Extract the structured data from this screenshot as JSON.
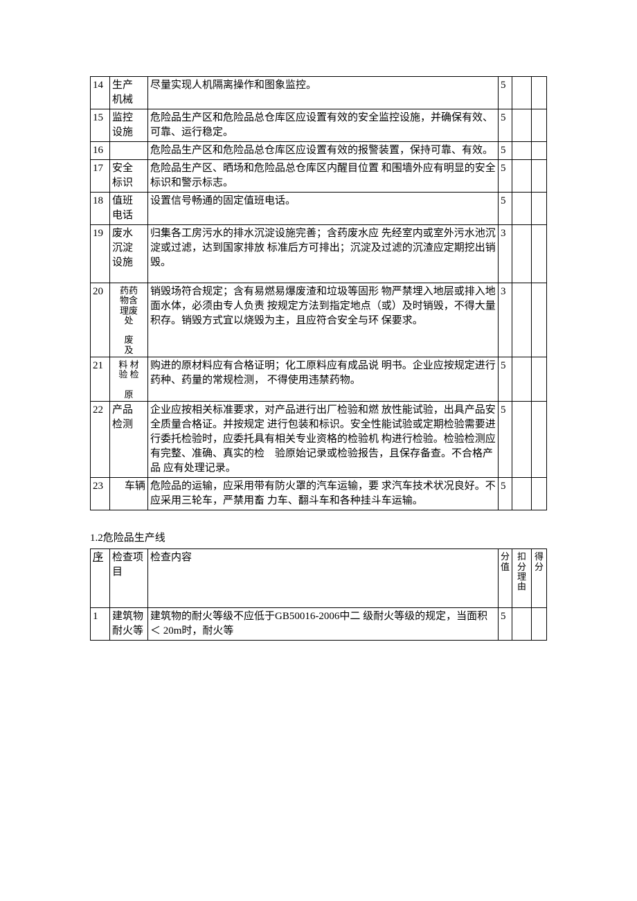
{
  "table1": {
    "columns": {
      "num_width": 28,
      "item_width": 55,
      "score_width": 20,
      "deduct_width": 28,
      "got_width": 22
    },
    "rows": [
      {
        "num": "14",
        "item": "生产 机械",
        "content": "尽量实现人机隔离操作和图象监控。",
        "score": "5"
      },
      {
        "num": "15",
        "item": "监控 设施",
        "content": "危险品生产区和危险品总仓库区应设置有效的安全监控设施，并确保有效、可靠、运行稳定。",
        "score": "5"
      },
      {
        "num": "16",
        "item": "",
        "content": "危险品生产区和危险品总仓库区应设置有效的报警装置，保持可靠、有效。",
        "score": "5"
      },
      {
        "num": "17",
        "item": "安全 标识",
        "content": "危险品生产区、晒场和危险品总仓库区内醒目位置 和围墙外应有明显的安全标识和警示标志。",
        "score": "5"
      },
      {
        "num": "18",
        "item": "值班 电话",
        "content": "设置信号畅通的固定值班电话。",
        "score": "5"
      },
      {
        "num": "19",
        "item": "废水 沉淀 设施",
        "content": "归集各工房污水的排水沉淀设施完善；含药废水应 先经室内或室外污水池沉淀或过滤，达到国家排放 标准后方可排出；沉淀及过滤的沉渣应定期挖出销 毁。",
        "score": "3",
        "extra_pad": true
      },
      {
        "num": "20",
        "item_vert": [
          "药药",
          "物含",
          "理废",
          "处",
          "",
          "废",
          "及"
        ],
        "content": "销毁场符合规定；含有易燃易爆废渣和垃圾等固形 物严禁埋入地层或排入地面水体，必须由专人负责 按规定方法到指定地点（或）及时销毁，不得大量 积存。销毁方式宜以烧毁为主，且应符合安全与环 保要求。",
        "score": "3",
        "extra_pad": true
      },
      {
        "num": "21",
        "item_vert": [
          "料 材",
          "验 检",
          "",
          "原"
        ],
        "content": "购进的原材料应有合格证明；化工原料应有成品说 明书。企业应按规定进行药种、药量的常规检测， 不得使用违禁药物。",
        "score": "5"
      },
      {
        "num": "22",
        "item": "产品 检测",
        "content": "企业应按相关标准要求，对产品进行出厂检验和燃 放性能试验，出具产品安全质量合格证。并按规定 进行包装和标识。安全性能试验或定期检验需要进 行委托检验时，应委托具有相关专业资格的检验机 构进行检验。检验检测应有完整、准确、真实的检　验原始记录或检验报告，且保存备查。不合格产品 应有处理记录。",
        "score": "5"
      },
      {
        "num": "23",
        "item": "车辆",
        "content": "危险品的运输，应采用带有防火罩的汽车运输，要 求汽车技术状况良好。不应采用三轮车，严禁用畜 力车、翻斗车和各种挂斗车运输。",
        "score": "5"
      }
    ]
  },
  "section2_title": "1.2危险品生产线",
  "table2": {
    "header": {
      "seq": "序",
      "item": "检查项目",
      "content": "检查内容",
      "score": "分值",
      "deduct": "扣分理由",
      "got": "得分"
    },
    "rows": [
      {
        "num": "1",
        "item": "建筑物耐火等",
        "content": "建筑物的耐火等级不应低于GB50016-2006中二 级耐火等级的规定，当面积＜ 20m时，耐火等",
        "score": "5"
      }
    ]
  }
}
